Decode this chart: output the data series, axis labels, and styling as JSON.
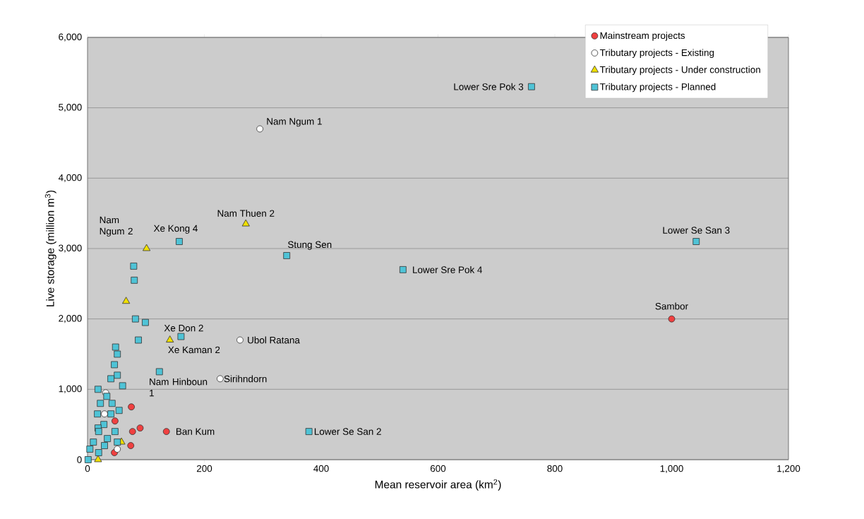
{
  "chart_data": {
    "type": "scatter",
    "xlabel": "Mean reservoir area (km$^{2}$)",
    "ylabel": "Live storage (million m$^{3}$)",
    "xlim": [
      0,
      1200
    ],
    "ylim": [
      0,
      6000
    ],
    "xticks": [
      0,
      200,
      400,
      600,
      800,
      {
        "value": 1000,
        "label": "1,000"
      },
      {
        "value": 1200,
        "label": "1,200"
      }
    ],
    "yticks": [
      0,
      {
        "value": 1000,
        "label": "1,000"
      },
      {
        "value": 2000,
        "label": "2,000"
      },
      {
        "value": 3000,
        "label": "3,000"
      },
      {
        "value": 4000,
        "label": "4,000"
      },
      {
        "value": 5000,
        "label": "5,000"
      },
      {
        "value": 6000,
        "label": "6,000"
      }
    ],
    "grid": "y",
    "legend": "top right",
    "series": [
      {
        "name": "Mainstream projects",
        "color": "#f04040",
        "marker": "circle",
        "x": [
          1000,
          135,
          75,
          47,
          90,
          77,
          74,
          46
        ],
        "values": [
          2000,
          400,
          750,
          550,
          450,
          400,
          200,
          100
        ]
      },
      {
        "name": "Tributary projects - Existing",
        "color": "#ffffff",
        "marker": "circle",
        "x": [
          295,
          261,
          227,
          31,
          29,
          51
        ],
        "values": [
          4700,
          1700,
          1150,
          950,
          650,
          150
        ]
      },
      {
        "name": "Tributary projects - Under construction",
        "color": "#f0e000",
        "marker": "triangle",
        "x": [
          271,
          101,
          66,
          141,
          58,
          18
        ],
        "values": [
          3350,
          3000,
          2250,
          1700,
          250,
          0
        ]
      },
      {
        "name": "Tributary projects - Planned",
        "color": "#4fc3d6",
        "marker": "square",
        "x": [
          760,
          1042,
          341,
          540,
          157,
          160,
          123,
          379,
          79,
          80,
          82,
          99,
          87,
          48,
          51,
          46,
          51,
          40,
          60,
          18,
          33,
          22,
          42,
          54,
          40,
          17,
          28,
          18,
          47,
          19,
          34,
          51,
          29,
          10,
          19,
          4,
          1
        ],
        "values": [
          5300,
          3100,
          2900,
          2700,
          3100,
          1750,
          1250,
          400,
          2750,
          2550,
          2000,
          1950,
          1700,
          1600,
          1500,
          1350,
          1200,
          1150,
          1050,
          1000,
          900,
          800,
          800,
          700,
          650,
          650,
          500,
          450,
          400,
          400,
          300,
          250,
          200,
          250,
          100,
          150,
          0
        ]
      }
    ],
    "annotations": [
      {
        "text": "Lower Sre Pok 3",
        "x": 760,
        "y": 5300
      },
      {
        "text": "Nam Ngum 1",
        "x": 295,
        "y": 4700
      },
      {
        "text": "Nam Thuen 2",
        "x": 271,
        "y": 3350
      },
      {
        "text": "Lower Se San 3",
        "x": 1042,
        "y": 3100
      },
      {
        "text": "Stung Sen",
        "x": 341,
        "y": 2900
      },
      {
        "text": "Lower Sre Pok 4",
        "x": 540,
        "y": 2700
      },
      {
        "text": "Xe Kong 4",
        "x": 157,
        "y": 3100
      },
      {
        "text": "Nam Ngum 2",
        "x": 101,
        "y": 3000
      },
      {
        "text": "Sambor",
        "x": 1000,
        "y": 2000
      },
      {
        "text": "Xe Don 2",
        "x": 160,
        "y": 1750
      },
      {
        "text": "Xe Kaman 2",
        "x": 141,
        "y": 1700
      },
      {
        "text": "Ubol Ratana",
        "x": 261,
        "y": 1700
      },
      {
        "text": "Sirihndorn",
        "x": 227,
        "y": 1150
      },
      {
        "text": "Nam Hinboun 1",
        "x": 123,
        "y": 1250
      },
      {
        "text": "Ban Kum",
        "x": 135,
        "y": 400
      },
      {
        "text": "Lower Se San 2",
        "x": 379,
        "y": 400
      }
    ]
  }
}
